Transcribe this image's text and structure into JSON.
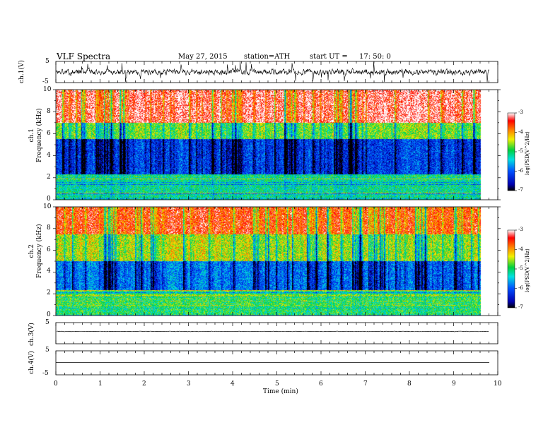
{
  "header": {
    "title": "VLF Spectra",
    "date": "May 27, 2015",
    "station": "station=ATH",
    "start_prefix": "start  UT  =",
    "start_time": "17: 50: 0"
  },
  "chart_data": [
    {
      "type": "line",
      "panel": "ch1-waveform",
      "ylabel": "ch.1(V)",
      "ylim": [
        -5,
        5
      ],
      "y_ticks": [
        "5",
        "-5"
      ],
      "xlim": [
        0,
        10
      ],
      "x_ticks": [
        "0",
        "1",
        "2",
        "3",
        "4",
        "5",
        "6",
        "7",
        "8",
        "9",
        "10"
      ],
      "xlabel": "Time  (min)",
      "series": [
        {
          "values_summary": "noisy signal mostly between about -1.5 and 1.5 V with spikes to +/-5 V"
        }
      ]
    },
    {
      "type": "heatmap",
      "panel": "ch1-spectrogram",
      "ylabel": "ch.1\nFrequency  (kHz)",
      "ylim": [
        0,
        10
      ],
      "y_ticks": [
        "0",
        "2",
        "4",
        "6",
        "8",
        "10"
      ],
      "xlim": [
        0,
        10
      ],
      "data_end_min": 9.8,
      "colorbar": {
        "label": "log(PSD(V^2/Hz)",
        "range": [
          -7,
          -3
        ],
        "ticks": [
          "-3",
          "-4",
          "-5",
          "-6",
          "-7"
        ]
      },
      "bands": [
        {
          "from_khz": 0.0,
          "to_khz": 2.3,
          "level": -5.2,
          "note": "horizontal interference lines"
        },
        {
          "from_khz": 2.3,
          "to_khz": 5.5,
          "level": -6.5
        },
        {
          "from_khz": 5.5,
          "to_khz": 7.0,
          "level": -5.0
        },
        {
          "from_khz": 7.0,
          "to_khz": 10.0,
          "level": -3.5
        }
      ]
    },
    {
      "type": "heatmap",
      "panel": "ch2-spectrogram",
      "ylabel": "ch.2\nFrequency  (kHz)",
      "ylim": [
        0,
        10
      ],
      "y_ticks": [
        "0",
        "2",
        "4",
        "6",
        "8",
        "10"
      ],
      "xlim": [
        0,
        10
      ],
      "data_end_min": 9.8,
      "colorbar": {
        "label": "log(PSD(V^2/Hz)",
        "range": [
          -7,
          -3
        ],
        "ticks": [
          "-3",
          "-4",
          "-5",
          "-6",
          "-7"
        ]
      },
      "bands": [
        {
          "from_khz": 0.0,
          "to_khz": 2.3,
          "level": -5.0,
          "note": "horizontal interference lines"
        },
        {
          "from_khz": 2.3,
          "to_khz": 5.0,
          "level": -6.2
        },
        {
          "from_khz": 5.0,
          "to_khz": 7.5,
          "level": -4.8
        },
        {
          "from_khz": 7.5,
          "to_khz": 10.0,
          "level": -3.9
        }
      ]
    },
    {
      "type": "line",
      "panel": "ch3-waveform",
      "ylabel": "ch.3(V)",
      "ylim": [
        -5,
        5
      ],
      "y_ticks": [
        "5",
        "-5"
      ],
      "series": [
        {
          "values_summary": "nearly flat at about 0 V"
        }
      ]
    },
    {
      "type": "line",
      "panel": "ch4-waveform",
      "ylabel": "ch.4(V)",
      "ylim": [
        -5,
        5
      ],
      "y_ticks": [
        "5",
        "-5"
      ],
      "series": [
        {
          "values_summary": "flat at about 0 V"
        }
      ]
    }
  ]
}
